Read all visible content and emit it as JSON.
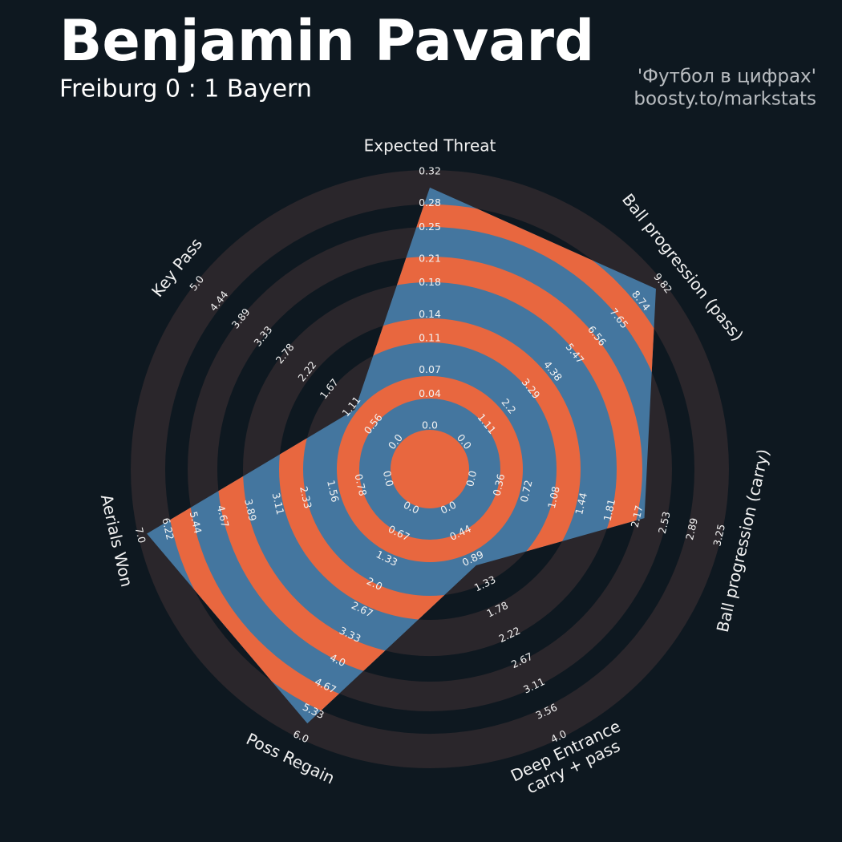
{
  "chart_data": {
    "type": "radar",
    "title": "Benjamin Pavard",
    "subtitle": "Freiburg 0 : 1 Bayern",
    "credits": [
      "'Футбол в цифрах'",
      "boosty.to/markstats"
    ],
    "categories": [
      "Expected Threat",
      "Ball progression (pass)",
      "Ball progression (carry)",
      [
        "Deep Entrance",
        "carry + pass"
      ],
      "Poss Regain",
      "Aerials Won",
      "Key Pass"
    ],
    "values": [
      0.3,
      9.5,
      2.26,
      1.0,
      5.64,
      6.8,
      1.03
    ],
    "color": "#44769f",
    "ring_color": "#e8673f",
    "background_ring_color": "#2a262b",
    "ticks": [
      [
        {
          "value": 0,
          "label": "0.0"
        },
        0.04,
        0.07,
        0.11,
        0.14,
        0.18,
        0.21,
        0.25,
        0.28,
        0.32
      ],
      [
        {
          "value": 0,
          "label": "0.0"
        },
        1.11,
        2.2,
        3.29,
        4.38,
        5.47,
        6.56,
        7.65,
        8.74,
        9.82
      ],
      [
        {
          "value": 0,
          "label": "0.0"
        },
        0.36,
        0.72,
        1.08,
        1.44,
        1.81,
        2.17,
        2.53,
        2.89,
        3.25
      ],
      [
        {
          "value": 0,
          "label": "0.0"
        },
        0.44,
        0.89,
        1.33,
        1.78,
        2.22,
        2.67,
        3.11,
        3.56,
        {
          "value": 4,
          "label": "4.0"
        }
      ],
      [
        {
          "value": 0,
          "label": "0.0"
        },
        0.67,
        1.33,
        {
          "value": 2,
          "label": "2.0"
        },
        2.67,
        3.33,
        {
          "value": 4,
          "label": "4.0"
        },
        4.67,
        5.33,
        {
          "value": 6,
          "label": "6.0"
        }
      ],
      [
        {
          "value": 0,
          "label": "0.0"
        },
        0.78,
        1.56,
        2.33,
        3.11,
        3.89,
        4.67,
        5.44,
        6.22,
        {
          "value": 7,
          "label": "7.0"
        }
      ],
      [
        {
          "value": 0,
          "label": "0.0"
        },
        0.56,
        1.11,
        1.67,
        2.22,
        2.78,
        3.33,
        3.89,
        4.44,
        {
          "value": 5,
          "label": "5.0"
        }
      ]
    ]
  }
}
